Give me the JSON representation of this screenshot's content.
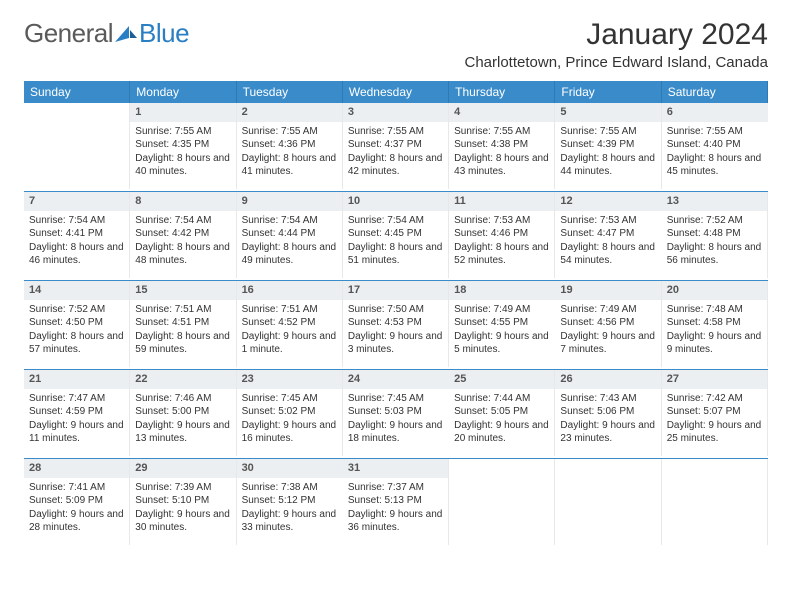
{
  "logo": {
    "general": "General",
    "blue": "Blue"
  },
  "title": "January 2024",
  "location": "Charlottetown, Prince Edward Island, Canada",
  "colors": {
    "headerBg": "#3a8bc9",
    "headerText": "#ffffff",
    "dayNumBg": "#eceff1",
    "sepColor": "#3a8bc9",
    "logoBlue": "#2a7fc4",
    "logoGray": "#5a5a5a"
  },
  "dayNames": [
    "Sunday",
    "Monday",
    "Tuesday",
    "Wednesday",
    "Thursday",
    "Friday",
    "Saturday"
  ],
  "weeks": [
    [
      {
        "n": "",
        "sunrise": "",
        "sunset": "",
        "daylight": ""
      },
      {
        "n": "1",
        "sunrise": "Sunrise: 7:55 AM",
        "sunset": "Sunset: 4:35 PM",
        "daylight": "Daylight: 8 hours and 40 minutes."
      },
      {
        "n": "2",
        "sunrise": "Sunrise: 7:55 AM",
        "sunset": "Sunset: 4:36 PM",
        "daylight": "Daylight: 8 hours and 41 minutes."
      },
      {
        "n": "3",
        "sunrise": "Sunrise: 7:55 AM",
        "sunset": "Sunset: 4:37 PM",
        "daylight": "Daylight: 8 hours and 42 minutes."
      },
      {
        "n": "4",
        "sunrise": "Sunrise: 7:55 AM",
        "sunset": "Sunset: 4:38 PM",
        "daylight": "Daylight: 8 hours and 43 minutes."
      },
      {
        "n": "5",
        "sunrise": "Sunrise: 7:55 AM",
        "sunset": "Sunset: 4:39 PM",
        "daylight": "Daylight: 8 hours and 44 minutes."
      },
      {
        "n": "6",
        "sunrise": "Sunrise: 7:55 AM",
        "sunset": "Sunset: 4:40 PM",
        "daylight": "Daylight: 8 hours and 45 minutes."
      }
    ],
    [
      {
        "n": "7",
        "sunrise": "Sunrise: 7:54 AM",
        "sunset": "Sunset: 4:41 PM",
        "daylight": "Daylight: 8 hours and 46 minutes."
      },
      {
        "n": "8",
        "sunrise": "Sunrise: 7:54 AM",
        "sunset": "Sunset: 4:42 PM",
        "daylight": "Daylight: 8 hours and 48 minutes."
      },
      {
        "n": "9",
        "sunrise": "Sunrise: 7:54 AM",
        "sunset": "Sunset: 4:44 PM",
        "daylight": "Daylight: 8 hours and 49 minutes."
      },
      {
        "n": "10",
        "sunrise": "Sunrise: 7:54 AM",
        "sunset": "Sunset: 4:45 PM",
        "daylight": "Daylight: 8 hours and 51 minutes."
      },
      {
        "n": "11",
        "sunrise": "Sunrise: 7:53 AM",
        "sunset": "Sunset: 4:46 PM",
        "daylight": "Daylight: 8 hours and 52 minutes."
      },
      {
        "n": "12",
        "sunrise": "Sunrise: 7:53 AM",
        "sunset": "Sunset: 4:47 PM",
        "daylight": "Daylight: 8 hours and 54 minutes."
      },
      {
        "n": "13",
        "sunrise": "Sunrise: 7:52 AM",
        "sunset": "Sunset: 4:48 PM",
        "daylight": "Daylight: 8 hours and 56 minutes."
      }
    ],
    [
      {
        "n": "14",
        "sunrise": "Sunrise: 7:52 AM",
        "sunset": "Sunset: 4:50 PM",
        "daylight": "Daylight: 8 hours and 57 minutes."
      },
      {
        "n": "15",
        "sunrise": "Sunrise: 7:51 AM",
        "sunset": "Sunset: 4:51 PM",
        "daylight": "Daylight: 8 hours and 59 minutes."
      },
      {
        "n": "16",
        "sunrise": "Sunrise: 7:51 AM",
        "sunset": "Sunset: 4:52 PM",
        "daylight": "Daylight: 9 hours and 1 minute."
      },
      {
        "n": "17",
        "sunrise": "Sunrise: 7:50 AM",
        "sunset": "Sunset: 4:53 PM",
        "daylight": "Daylight: 9 hours and 3 minutes."
      },
      {
        "n": "18",
        "sunrise": "Sunrise: 7:49 AM",
        "sunset": "Sunset: 4:55 PM",
        "daylight": "Daylight: 9 hours and 5 minutes."
      },
      {
        "n": "19",
        "sunrise": "Sunrise: 7:49 AM",
        "sunset": "Sunset: 4:56 PM",
        "daylight": "Daylight: 9 hours and 7 minutes."
      },
      {
        "n": "20",
        "sunrise": "Sunrise: 7:48 AM",
        "sunset": "Sunset: 4:58 PM",
        "daylight": "Daylight: 9 hours and 9 minutes."
      }
    ],
    [
      {
        "n": "21",
        "sunrise": "Sunrise: 7:47 AM",
        "sunset": "Sunset: 4:59 PM",
        "daylight": "Daylight: 9 hours and 11 minutes."
      },
      {
        "n": "22",
        "sunrise": "Sunrise: 7:46 AM",
        "sunset": "Sunset: 5:00 PM",
        "daylight": "Daylight: 9 hours and 13 minutes."
      },
      {
        "n": "23",
        "sunrise": "Sunrise: 7:45 AM",
        "sunset": "Sunset: 5:02 PM",
        "daylight": "Daylight: 9 hours and 16 minutes."
      },
      {
        "n": "24",
        "sunrise": "Sunrise: 7:45 AM",
        "sunset": "Sunset: 5:03 PM",
        "daylight": "Daylight: 9 hours and 18 minutes."
      },
      {
        "n": "25",
        "sunrise": "Sunrise: 7:44 AM",
        "sunset": "Sunset: 5:05 PM",
        "daylight": "Daylight: 9 hours and 20 minutes."
      },
      {
        "n": "26",
        "sunrise": "Sunrise: 7:43 AM",
        "sunset": "Sunset: 5:06 PM",
        "daylight": "Daylight: 9 hours and 23 minutes."
      },
      {
        "n": "27",
        "sunrise": "Sunrise: 7:42 AM",
        "sunset": "Sunset: 5:07 PM",
        "daylight": "Daylight: 9 hours and 25 minutes."
      }
    ],
    [
      {
        "n": "28",
        "sunrise": "Sunrise: 7:41 AM",
        "sunset": "Sunset: 5:09 PM",
        "daylight": "Daylight: 9 hours and 28 minutes."
      },
      {
        "n": "29",
        "sunrise": "Sunrise: 7:39 AM",
        "sunset": "Sunset: 5:10 PM",
        "daylight": "Daylight: 9 hours and 30 minutes."
      },
      {
        "n": "30",
        "sunrise": "Sunrise: 7:38 AM",
        "sunset": "Sunset: 5:12 PM",
        "daylight": "Daylight: 9 hours and 33 minutes."
      },
      {
        "n": "31",
        "sunrise": "Sunrise: 7:37 AM",
        "sunset": "Sunset: 5:13 PM",
        "daylight": "Daylight: 9 hours and 36 minutes."
      },
      {
        "n": "",
        "sunrise": "",
        "sunset": "",
        "daylight": ""
      },
      {
        "n": "",
        "sunrise": "",
        "sunset": "",
        "daylight": ""
      },
      {
        "n": "",
        "sunrise": "",
        "sunset": "",
        "daylight": ""
      }
    ]
  ]
}
